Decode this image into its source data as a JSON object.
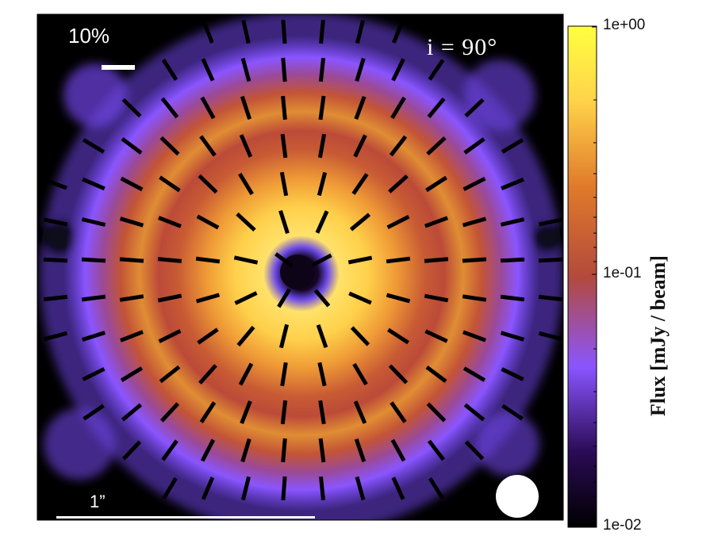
{
  "chart_data": {
    "type": "heatmap",
    "map": "polarization map of a ring disk (total flux)",
    "colormap": [
      "#000000",
      "#2a0b55",
      "#8a55ff",
      "#b34a3c",
      "#e07a2a",
      "#ffd24a",
      "#ffff40"
    ],
    "colorscale": "log",
    "colorbar": {
      "label": "Flux [mJy / beam]",
      "range": [
        0.01,
        1.0
      ],
      "ticks": [
        "1e+00",
        "1e-01",
        "1e-02"
      ],
      "tick_values": [
        1.0,
        0.1,
        0.01
      ]
    },
    "annotations": {
      "inclination": "i  =  90°",
      "polarization_scale": "10%",
      "angular_scale": "1”"
    },
    "vector_pattern": "azimuthal",
    "vector_grid_spacing_arcsec": 0.15,
    "beam_shape": "circle"
  }
}
